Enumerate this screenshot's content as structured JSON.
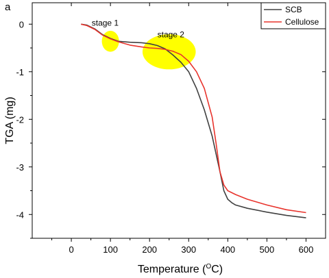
{
  "panel_label": "a",
  "chart_data": {
    "type": "line",
    "xlabel": "Temperature (",
    "xlabel_sup": "O",
    "xlabel_tail": "C)",
    "ylabel": "TGA (mg)",
    "xlim": [
      -100,
      650
    ],
    "ylim": [
      -4.5,
      0.45
    ],
    "x_ticks": [
      0,
      100,
      200,
      300,
      400,
      500,
      600
    ],
    "y_ticks": [
      0,
      -1,
      -2,
      -3,
      -4
    ],
    "x_tick_labels": [
      "0",
      "100",
      "200",
      "300",
      "400",
      "500",
      "600"
    ],
    "y_tick_labels": [
      "0",
      "-1",
      "-2",
      "-3",
      "-4"
    ],
    "legend_position": "top-right",
    "series": [
      {
        "name": "SCB",
        "color": "#404040",
        "x": [
          25,
          40,
          60,
          80,
          100,
          120,
          150,
          180,
          200,
          220,
          240,
          260,
          280,
          300,
          320,
          340,
          360,
          380,
          390,
          400,
          410,
          420,
          450,
          500,
          550,
          600
        ],
        "y": [
          0.0,
          -0.02,
          -0.1,
          -0.22,
          -0.3,
          -0.36,
          -0.38,
          -0.39,
          -0.41,
          -0.45,
          -0.52,
          -0.65,
          -0.8,
          -1.0,
          -1.35,
          -1.8,
          -2.35,
          -3.1,
          -3.5,
          -3.68,
          -3.75,
          -3.8,
          -3.87,
          -3.95,
          -4.02,
          -4.07
        ]
      },
      {
        "name": "Cellulose",
        "color": "#e8332c",
        "x": [
          25,
          40,
          60,
          80,
          100,
          120,
          150,
          180,
          200,
          220,
          240,
          260,
          280,
          300,
          320,
          340,
          360,
          370,
          380,
          390,
          400,
          420,
          450,
          500,
          550,
          600
        ],
        "y": [
          0.0,
          -0.03,
          -0.11,
          -0.23,
          -0.31,
          -0.37,
          -0.44,
          -0.48,
          -0.5,
          -0.51,
          -0.53,
          -0.57,
          -0.64,
          -0.78,
          -1.0,
          -1.35,
          -1.95,
          -2.5,
          -3.1,
          -3.38,
          -3.5,
          -3.58,
          -3.68,
          -3.8,
          -3.9,
          -3.96
        ]
      }
    ],
    "annotations": [
      {
        "label": "stage 1",
        "x": 100,
        "y": -0.36,
        "label_x": 52,
        "label_y": -0.03,
        "rx": 22,
        "ry": 0.22,
        "color": "#ffff00"
      },
      {
        "label": "stage 2",
        "x": 250,
        "y": -0.58,
        "label_x": 220,
        "label_y": -0.28,
        "rx": 68,
        "ry": 0.37,
        "color": "#ffff00"
      }
    ]
  }
}
